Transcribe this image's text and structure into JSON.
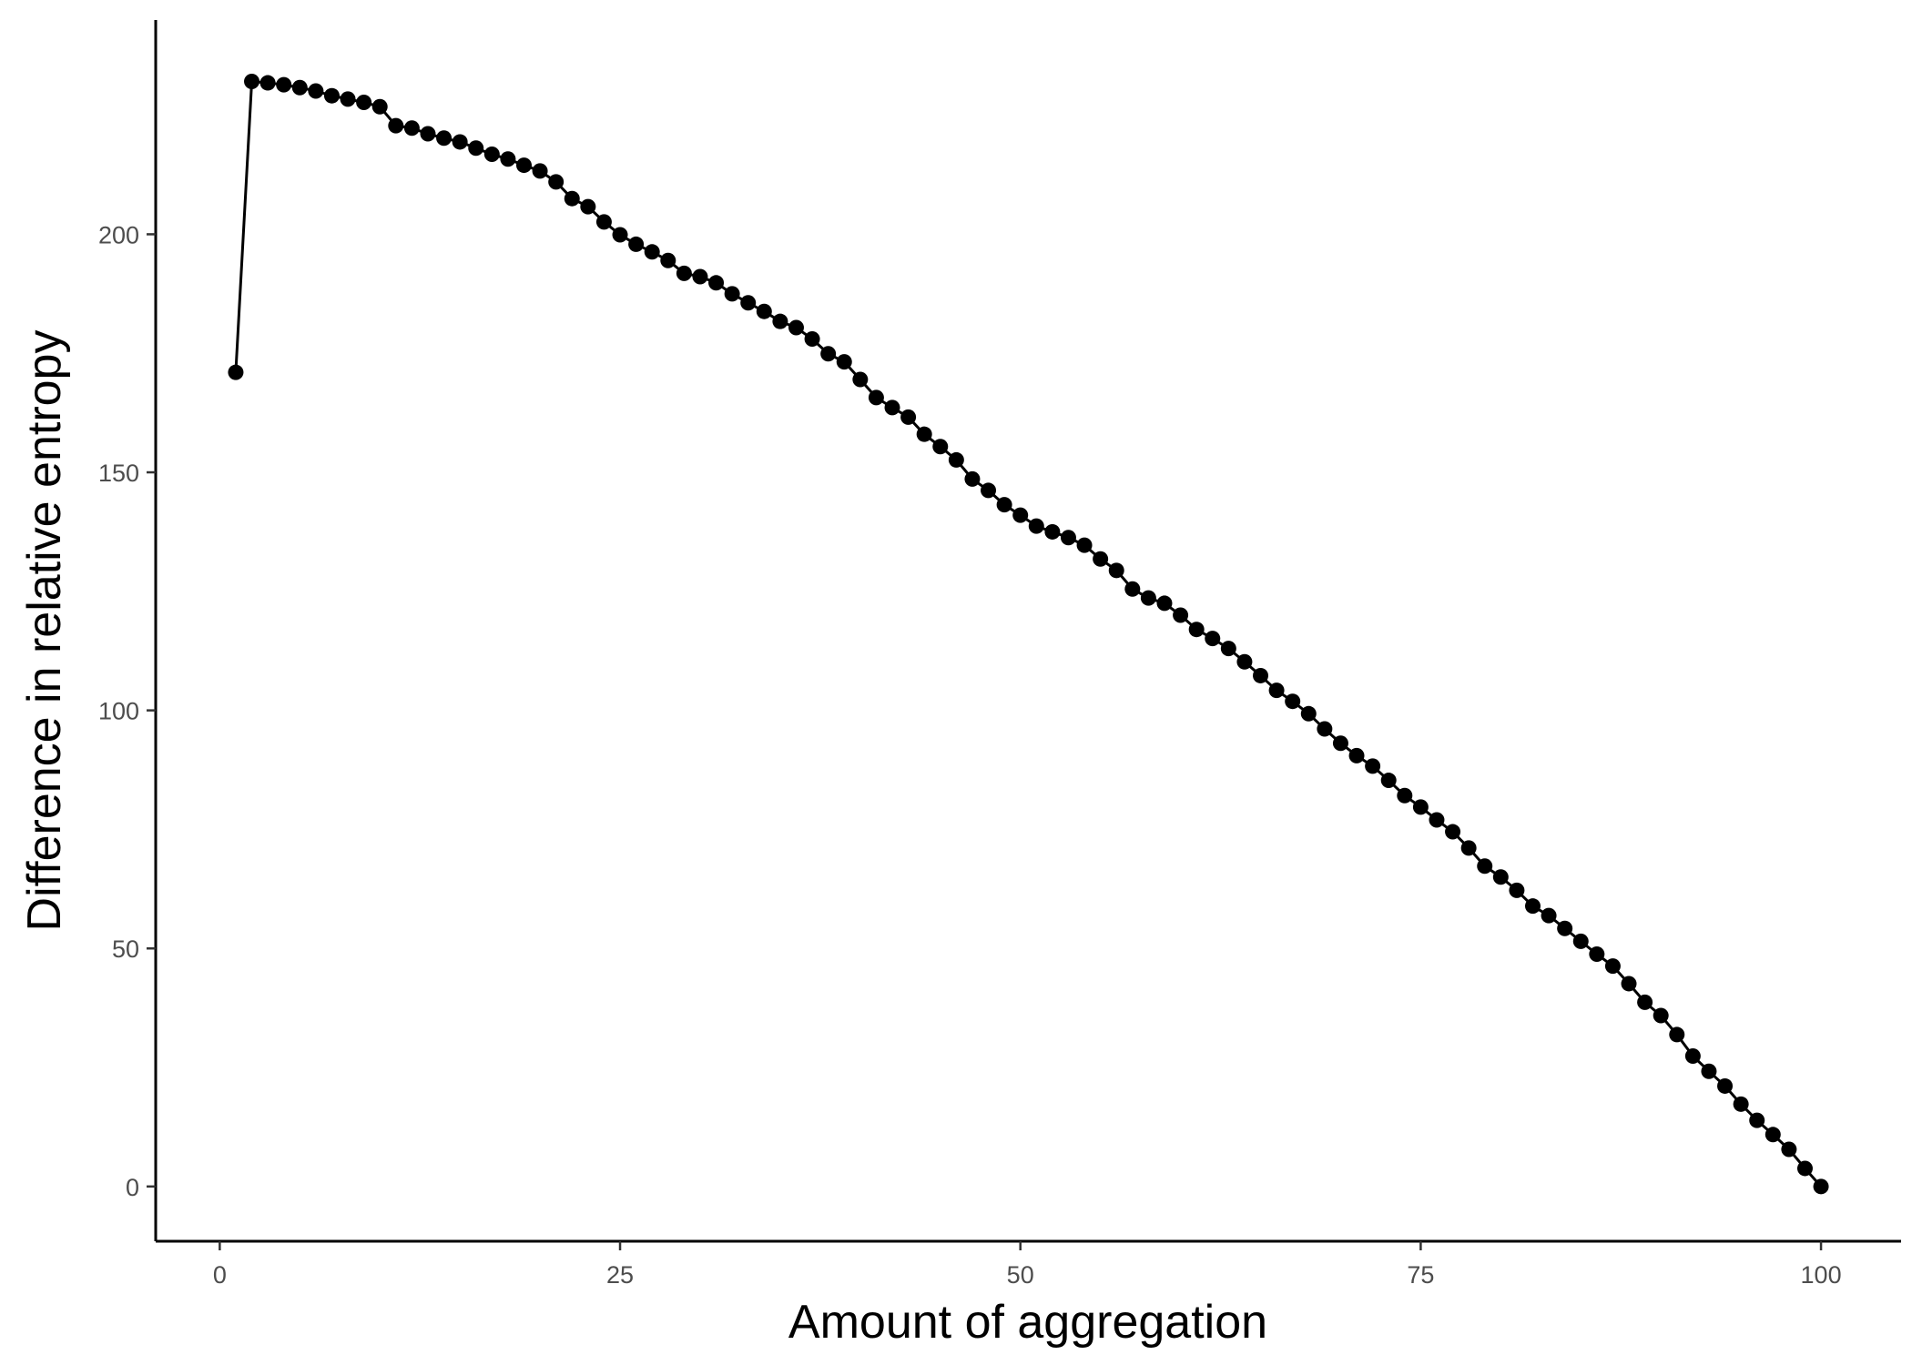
{
  "chart_data": {
    "type": "line",
    "title": "",
    "xlabel": "Amount of aggregation",
    "ylabel": "Difference in relative entropy",
    "xlim": [
      -4,
      105
    ],
    "ylim": [
      -11.5,
      245
    ],
    "xticks": [
      0,
      25,
      50,
      75,
      100
    ],
    "yticks": [
      0,
      50,
      100,
      150,
      200
    ],
    "xtick_labels": [
      "0",
      "25",
      "50",
      "75",
      "100"
    ],
    "ytick_labels": [
      "0",
      "50",
      "100",
      "150",
      "200"
    ],
    "grid": false,
    "legend": "none",
    "series": [
      {
        "markers": true,
        "color": "#000000",
        "x": [
          1,
          2,
          3,
          4,
          5,
          6,
          7,
          8,
          9,
          10,
          11,
          12,
          13,
          14,
          15,
          16,
          17,
          18,
          19,
          20,
          21,
          22,
          23,
          24,
          25,
          26,
          27,
          28,
          29,
          30,
          31,
          32,
          33,
          34,
          35,
          36,
          37,
          38,
          39,
          40,
          41,
          42,
          43,
          44,
          45,
          46,
          47,
          48,
          49,
          50,
          51,
          52,
          53,
          54,
          55,
          56,
          57,
          58,
          59,
          60,
          61,
          62,
          63,
          64,
          65,
          66,
          67,
          68,
          69,
          70,
          71,
          72,
          73,
          74,
          75,
          76,
          77,
          78,
          79,
          80,
          81,
          82,
          83,
          84,
          85,
          86,
          87,
          88,
          89,
          90,
          91,
          92,
          93,
          94,
          95,
          96,
          97,
          98,
          99,
          100
        ],
        "y": [
          171,
          232.1,
          231.8,
          231.4,
          230.8,
          230.1,
          229.1,
          228.4,
          227.7,
          226.8,
          222.8,
          222.3,
          221.1,
          220.2,
          219.4,
          218.1,
          216.8,
          215.8,
          214.5,
          213.3,
          211,
          207.5,
          205.8,
          202.6,
          199.9,
          197.9,
          196.3,
          194.5,
          191.8,
          191.1,
          189.8,
          187.5,
          185.6,
          183.8,
          181.7,
          180.4,
          178,
          174.9,
          173.2,
          169.5,
          165.7,
          163.6,
          161.6,
          158,
          155.4,
          152.6,
          148.6,
          146.2,
          143.2,
          141,
          138.7,
          137.5,
          136.3,
          134.7,
          131.8,
          129.4,
          125.5,
          123.6,
          122.5,
          120,
          117,
          115.1,
          113,
          110.2,
          107.3,
          104.2,
          101.9,
          99.3,
          96.1,
          93.1,
          90.5,
          88.3,
          85.3,
          82.1,
          79.7,
          77,
          74.5,
          71.1,
          67.3,
          65,
          62.2,
          58.9,
          56.9,
          54.2,
          51.5,
          48.8,
          46.3,
          42.6,
          38.7,
          35.9,
          31.9,
          27.4,
          24.2,
          21.1,
          17.3,
          13.9,
          10.9,
          7.8,
          3.8,
          0
        ]
      }
    ]
  }
}
